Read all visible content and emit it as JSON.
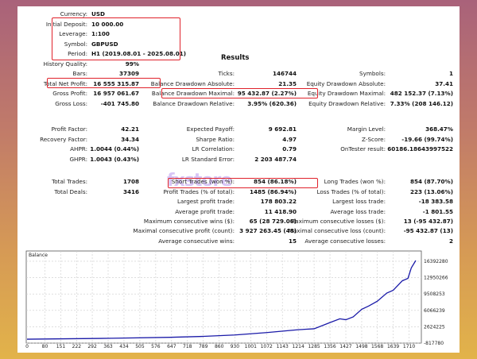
{
  "title": "Results",
  "watermark": "fxstore",
  "settings": [
    {
      "label": "Currency:",
      "value": "USD"
    },
    {
      "label": "Initial Deposit:",
      "value": "10 000.00"
    },
    {
      "label": "Leverage:",
      "value": "1:100"
    },
    {
      "label": "Symbol:",
      "value": "GBPUSD"
    },
    {
      "label": "Period:",
      "value": "H1 (2019.08.01 - 2025.08.01)"
    }
  ],
  "col1": [
    {
      "label": "History Quality:",
      "value": "99%",
      "row": 0
    },
    {
      "label": "Bars:",
      "value": "37309",
      "row": 1
    },
    {
      "label": "Total Net Profit:",
      "value": "16 555 315.87",
      "row": 2
    },
    {
      "label": "Gross Profit:",
      "value": "16 957 061.67",
      "row": 3
    },
    {
      "label": "Gross Loss:",
      "value": "-401 745.80",
      "row": 4
    },
    {
      "label": "Profit Factor:",
      "value": "42.21",
      "row": 6
    },
    {
      "label": "Recovery Factor:",
      "value": "34.34",
      "row": 7
    },
    {
      "label": "AHPR:",
      "value": "1.0044 (0.44%)",
      "row": 8
    },
    {
      "label": "GHPR:",
      "value": "1.0043 (0.43%)",
      "row": 9
    },
    {
      "label": "Total Trades:",
      "value": "1708",
      "row": 11
    },
    {
      "label": "Total Deals:",
      "value": "3416",
      "row": 12
    }
  ],
  "col2": [
    {
      "label": "Ticks:",
      "value": "146744",
      "row": 1
    },
    {
      "label": "Balance Drawdown Absolute:",
      "value": "21.35",
      "row": 2
    },
    {
      "label": "Balance Drawdown Maximal:",
      "value": "95 432.87 (2.27%)",
      "row": 3
    },
    {
      "label": "Balance Drawdown Relative:",
      "value": "3.95% (620.36)",
      "row": 4
    },
    {
      "label": "Expected Payoff:",
      "value": "9 692.81",
      "row": 6
    },
    {
      "label": "Sharpe Ratio:",
      "value": "4.97",
      "row": 7
    },
    {
      "label": "LR Correlation:",
      "value": "0.79",
      "row": 8
    },
    {
      "label": "LR Standard Error:",
      "value": "2 203 487.74",
      "row": 9
    },
    {
      "label": "Short Trades (won %):",
      "value": "854 (86.18%)",
      "row": 11
    },
    {
      "label": "Profit Trades (% of total):",
      "value": "1485 (86.94%)",
      "row": 12
    },
    {
      "label": "Largest profit trade:",
      "value": "178 803.22",
      "row": 13
    },
    {
      "label": "Average profit trade:",
      "value": "11 418.90",
      "row": 14
    },
    {
      "label": "Maximum consecutive wins ($):",
      "value": "65 (28 729.06)",
      "row": 15
    },
    {
      "label": "Maximal consecutive profit (count):",
      "value": "3 927 263.45 (48)",
      "row": 16
    },
    {
      "label": "Average consecutive wins:",
      "value": "15",
      "row": 17
    }
  ],
  "col3": [
    {
      "label": "Symbols:",
      "value": "1",
      "row": 1
    },
    {
      "label": "Equity Drawdown Absolute:",
      "value": "37.41",
      "row": 2
    },
    {
      "label": "Equity Drawdown Maximal:",
      "value": "482 152.37 (7.13%)",
      "row": 3
    },
    {
      "label": "Equity Drawdown Relative:",
      "value": "7.33% (208 146.12)",
      "row": 4
    },
    {
      "label": "Margin Level:",
      "value": "368.47%",
      "row": 6
    },
    {
      "label": "Z-Score:",
      "value": "-19.66 (99.74%)",
      "row": 7
    },
    {
      "label": "OnTester result:",
      "value": "60186.18643997522",
      "row": 8
    },
    {
      "label": "Long Trades (won %):",
      "value": "854 (87.70%)",
      "row": 11
    },
    {
      "label": "Loss Trades (% of total):",
      "value": "223 (13.06%)",
      "row": 12
    },
    {
      "label": "Largest loss trade:",
      "value": "-18 383.58",
      "row": 13
    },
    {
      "label": "Average loss trade:",
      "value": "-1 801.55",
      "row": 14
    },
    {
      "label": "Maximum consecutive losses ($):",
      "value": "13 (-95 432.87)",
      "row": 15
    },
    {
      "label": "Maximal consecutive loss (count):",
      "value": "-95 432.87 (13)",
      "row": 16
    },
    {
      "label": "Average consecutive losses:",
      "value": "2",
      "row": 17
    }
  ],
  "highlight_color": "#e0222b",
  "chart_data": {
    "type": "line",
    "title": "Balance",
    "line_color": "#1a1aa8",
    "grid": true,
    "xlim": [
      0,
      1765
    ],
    "ylim": [
      -817780,
      18560000
    ],
    "x_ticks": [
      "0",
      "80",
      "151",
      "222",
      "292",
      "363",
      "434",
      "505",
      "576",
      "647",
      "718",
      "789",
      "860",
      "930",
      "1001",
      "1072",
      "1143",
      "1214",
      "1285",
      "1356",
      "1427",
      "1498",
      "1568",
      "1639",
      "1710"
    ],
    "y_ticks": [
      "16392280",
      "12950266",
      "9508253",
      "6066239",
      "2624225",
      "-817780"
    ],
    "x": [
      0,
      380,
      640,
      790,
      930,
      1072,
      1214,
      1285,
      1356,
      1400,
      1427,
      1460,
      1498,
      1530,
      1568,
      1610,
      1639,
      1680,
      1705,
      1720,
      1740
    ],
    "y": [
      10000,
      200000,
      400000,
      600000,
      900000,
      1400000,
      2000000,
      2200000,
      3500000,
      4300000,
      4100000,
      4700000,
      6300000,
      7000000,
      8000000,
      9700000,
      10300000,
      12300000,
      12800000,
      15000000,
      16555000
    ]
  }
}
